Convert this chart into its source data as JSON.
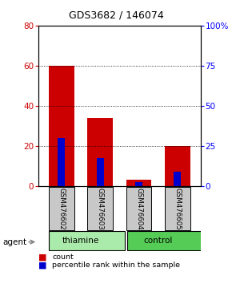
{
  "title": "GDS3682 / 146074",
  "samples": [
    "GSM476602",
    "GSM476603",
    "GSM476604",
    "GSM476605"
  ],
  "red_values": [
    60,
    34,
    3,
    20
  ],
  "blue_values": [
    24,
    14,
    2,
    7
  ],
  "red_color": "#CC0000",
  "blue_color": "#0000CC",
  "left_yticks": [
    0,
    20,
    40,
    60,
    80
  ],
  "right_yticks": [
    0,
    25,
    50,
    75,
    100
  ],
  "right_yticklabels": [
    "0",
    "25",
    "50",
    "75",
    "100%"
  ],
  "ylim_left": [
    0,
    80
  ],
  "ylim_right": [
    0,
    100
  ],
  "legend_items": [
    "count",
    "percentile rank within the sample"
  ],
  "agent_label": "agent",
  "bar_width": 0.65,
  "sample_box_color": "#C8C8C8",
  "thiamine_color": "#AAEAAA",
  "control_color": "#55CC55",
  "bg_color": "#FFFFFF",
  "title_fontsize": 9
}
